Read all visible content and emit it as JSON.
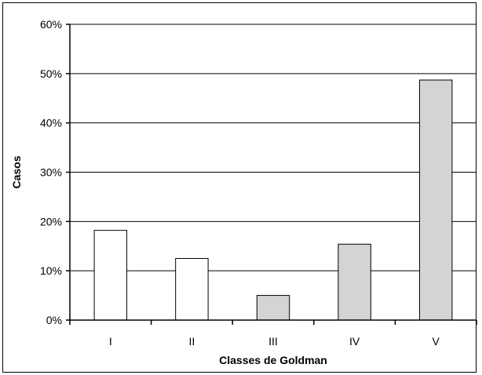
{
  "chart_data": {
    "type": "bar",
    "title": "",
    "xlabel": "Classes de Goldman",
    "ylabel": "Casos",
    "categories": [
      "I",
      "II",
      "III",
      "IV",
      "V"
    ],
    "values": [
      18.2,
      12.5,
      5.0,
      15.4,
      48.7
    ],
    "value_format": "percent",
    "ylim": [
      0,
      60
    ],
    "yticks": [
      0,
      10,
      20,
      30,
      40,
      50,
      60
    ],
    "ytick_labels": [
      "0%",
      "10%",
      "20%",
      "30%",
      "40%",
      "50%",
      "60%"
    ],
    "grid": true,
    "legend": "none",
    "bar_colors": [
      "#ffffff",
      "#ffffff",
      "#d4d4d4",
      "#d4d4d4",
      "#d4d4d4"
    ]
  }
}
